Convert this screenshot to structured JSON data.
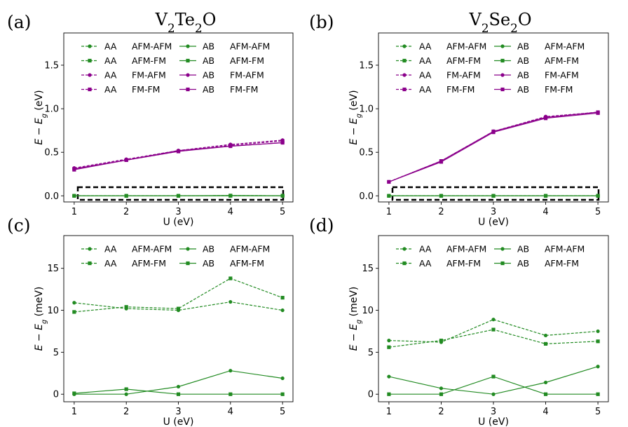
{
  "chart_data": [
    {
      "panel_label": "(a)",
      "title_parts": [
        "V",
        "2",
        "Te",
        "2",
        "O"
      ],
      "type": "line",
      "xlabel": "U (eV)",
      "ylabel_parts": [
        "E − E",
        "g",
        " (eV)"
      ],
      "xlim": [
        0.8,
        5.2
      ],
      "ylim": [
        -0.07,
        1.87
      ],
      "xticks": [
        1,
        2,
        3,
        4,
        5
      ],
      "yticks": [
        0.0,
        0.5,
        1.0,
        1.5
      ],
      "ytick_labels": [
        "0.0",
        "0.5",
        "1.0",
        "1.5"
      ],
      "legend_position": "top",
      "has_dashed_box": true,
      "x": [
        1,
        2,
        3,
        4,
        5
      ],
      "series": [
        {
          "stack": "AA",
          "config": "AFM-AFM",
          "color": "#228B22",
          "dash": true,
          "marker": "circle",
          "values": [
            0.0,
            0.0,
            0.0,
            0.002,
            0.001
          ]
        },
        {
          "stack": "AA",
          "config": "AFM-FM",
          "color": "#228B22",
          "dash": true,
          "marker": "square",
          "values": [
            0.0,
            0.0,
            0.0,
            0.003,
            0.002
          ]
        },
        {
          "stack": "AA",
          "config": "FM-AFM",
          "color": "#8B008B",
          "dash": true,
          "marker": "circle",
          "values": [
            0.32,
            0.42,
            0.52,
            0.59,
            0.64
          ]
        },
        {
          "stack": "AA",
          "config": "FM-FM",
          "color": "#8B008B",
          "dash": true,
          "marker": "square",
          "values": [
            0.31,
            0.41,
            0.51,
            0.58,
            0.63
          ]
        },
        {
          "stack": "AB",
          "config": "AFM-AFM",
          "color": "#228B22",
          "dash": false,
          "marker": "circle",
          "values": [
            0.0,
            0.0,
            0.001,
            0.003,
            0.002
          ]
        },
        {
          "stack": "AB",
          "config": "AFM-FM",
          "color": "#228B22",
          "dash": false,
          "marker": "square",
          "values": [
            0.0,
            0.0,
            0.0,
            0.0,
            0.0
          ]
        },
        {
          "stack": "AB",
          "config": "FM-AFM",
          "color": "#8B008B",
          "dash": false,
          "marker": "circle",
          "values": [
            0.31,
            0.41,
            0.52,
            0.57,
            0.61
          ]
        },
        {
          "stack": "AB",
          "config": "FM-FM",
          "color": "#8B008B",
          "dash": false,
          "marker": "square",
          "values": [
            0.3,
            0.41,
            0.51,
            0.57,
            0.61
          ]
        }
      ]
    },
    {
      "panel_label": "(b)",
      "title_parts": [
        "V",
        "2",
        "Se",
        "2",
        "O"
      ],
      "type": "line",
      "xlabel": "U (eV)",
      "ylabel_parts": [
        "E − E",
        "g",
        " (eV)"
      ],
      "xlim": [
        0.8,
        5.2
      ],
      "ylim": [
        -0.07,
        1.87
      ],
      "xticks": [
        1,
        2,
        3,
        4,
        5
      ],
      "yticks": [
        0.0,
        0.5,
        1.0,
        1.5
      ],
      "ytick_labels": [
        "0.0",
        "0.5",
        "1.0",
        "1.5"
      ],
      "legend_position": "top",
      "has_dashed_box": true,
      "x": [
        1,
        2,
        3,
        4,
        5
      ],
      "series": [
        {
          "stack": "AA",
          "config": "AFM-AFM",
          "color": "#228B22",
          "dash": true,
          "marker": "circle",
          "values": [
            0.0,
            0.0,
            0.0,
            0.0,
            0.0
          ]
        },
        {
          "stack": "AA",
          "config": "AFM-FM",
          "color": "#228B22",
          "dash": true,
          "marker": "square",
          "values": [
            0.0,
            0.0,
            0.0,
            0.0,
            0.0
          ]
        },
        {
          "stack": "AA",
          "config": "FM-AFM",
          "color": "#8B008B",
          "dash": true,
          "marker": "circle",
          "values": [
            0.16,
            0.4,
            0.74,
            0.91,
            0.96
          ]
        },
        {
          "stack": "AA",
          "config": "FM-FM",
          "color": "#8B008B",
          "dash": true,
          "marker": "square",
          "values": [
            0.16,
            0.4,
            0.74,
            0.9,
            0.96
          ]
        },
        {
          "stack": "AB",
          "config": "AFM-AFM",
          "color": "#228B22",
          "dash": false,
          "marker": "circle",
          "values": [
            0.0,
            0.0,
            0.0,
            0.0,
            0.0
          ]
        },
        {
          "stack": "AB",
          "config": "AFM-FM",
          "color": "#228B22",
          "dash": false,
          "marker": "square",
          "values": [
            0.0,
            0.0,
            0.0,
            0.0,
            0.0
          ]
        },
        {
          "stack": "AB",
          "config": "FM-AFM",
          "color": "#8B008B",
          "dash": false,
          "marker": "circle",
          "values": [
            0.16,
            0.4,
            0.74,
            0.9,
            0.96
          ]
        },
        {
          "stack": "AB",
          "config": "FM-FM",
          "color": "#8B008B",
          "dash": false,
          "marker": "square",
          "values": [
            0.16,
            0.39,
            0.73,
            0.89,
            0.95
          ]
        }
      ]
    },
    {
      "panel_label": "(c)",
      "title_parts": [],
      "type": "line",
      "xlabel": "U (eV)",
      "ylabel_parts": [
        "E − E",
        "g",
        " (meV)"
      ],
      "xlim": [
        0.8,
        5.2
      ],
      "ylim": [
        -0.9,
        18.9
      ],
      "xticks": [
        1,
        2,
        3,
        4,
        5
      ],
      "yticks": [
        0,
        5,
        10,
        15
      ],
      "ytick_labels": [
        "0",
        "5",
        "10",
        "15"
      ],
      "legend_position": "top",
      "has_dashed_box": false,
      "x": [
        1,
        2,
        3,
        4,
        5
      ],
      "series": [
        {
          "stack": "AA",
          "config": "AFM-AFM",
          "color": "#228B22",
          "dash": true,
          "marker": "circle",
          "values": [
            10.9,
            10.2,
            10.0,
            11.0,
            10.0
          ]
        },
        {
          "stack": "AA",
          "config": "AFM-FM",
          "color": "#228B22",
          "dash": true,
          "marker": "square",
          "values": [
            9.8,
            10.4,
            10.2,
            13.8,
            11.5
          ]
        },
        {
          "stack": "AB",
          "config": "AFM-AFM",
          "color": "#228B22",
          "dash": false,
          "marker": "circle",
          "values": [
            0.0,
            0.0,
            0.9,
            2.8,
            1.9
          ]
        },
        {
          "stack": "AB",
          "config": "AFM-FM",
          "color": "#228B22",
          "dash": false,
          "marker": "square",
          "values": [
            0.1,
            0.6,
            0.0,
            0.0,
            0.0
          ]
        }
      ]
    },
    {
      "panel_label": "(d)",
      "title_parts": [],
      "type": "line",
      "xlabel": "U (eV)",
      "ylabel_parts": [
        "E − E",
        "g",
        " (meV)"
      ],
      "xlim": [
        0.8,
        5.2
      ],
      "ylim": [
        -0.9,
        18.9
      ],
      "xticks": [
        1,
        2,
        3,
        4,
        5
      ],
      "yticks": [
        0,
        5,
        10,
        15
      ],
      "ytick_labels": [
        "0",
        "5",
        "10",
        "15"
      ],
      "legend_position": "top",
      "has_dashed_box": false,
      "x": [
        1,
        2,
        3,
        4,
        5
      ],
      "series": [
        {
          "stack": "AA",
          "config": "AFM-AFM",
          "color": "#228B22",
          "dash": true,
          "marker": "circle",
          "values": [
            6.4,
            6.2,
            8.9,
            7.0,
            7.5
          ]
        },
        {
          "stack": "AA",
          "config": "AFM-FM",
          "color": "#228B22",
          "dash": true,
          "marker": "square",
          "values": [
            5.6,
            6.4,
            7.7,
            6.0,
            6.3
          ]
        },
        {
          "stack": "AB",
          "config": "AFM-AFM",
          "color": "#228B22",
          "dash": false,
          "marker": "circle",
          "values": [
            2.1,
            0.7,
            0.0,
            1.4,
            3.3
          ]
        },
        {
          "stack": "AB",
          "config": "AFM-FM",
          "color": "#228B22",
          "dash": false,
          "marker": "square",
          "values": [
            0.0,
            0.0,
            2.1,
            0.0,
            0.0
          ]
        }
      ]
    }
  ]
}
